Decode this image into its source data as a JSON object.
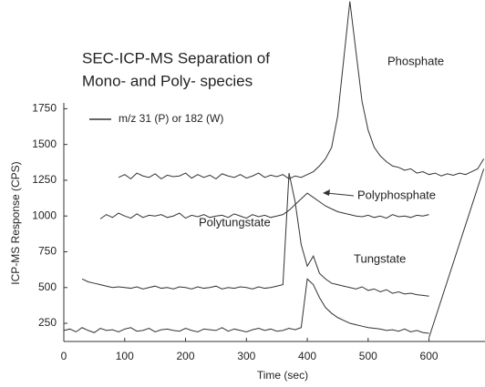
{
  "chart_data": {
    "type": "line",
    "title_lines": [
      "SEC-ICP-MS Separation of",
      "Mono- and Poly- species"
    ],
    "x_label": "Time (sec)",
    "y_label": "ICP-MS Response (CPS)",
    "legend_label": "m/z 31 (P) or 182 (W)",
    "annotations": [
      "Phosphate",
      "Polyphosphate",
      "Polytungstate",
      "Tungstate"
    ],
    "color": "#333333",
    "xlim": [
      0,
      692
    ],
    "ylim": [
      123,
      2510
    ],
    "xticks": [
      0,
      100,
      200,
      300,
      400,
      500,
      600
    ],
    "yticks": [
      250,
      500,
      750,
      1000,
      1250,
      1500,
      1750
    ],
    "series": [
      {
        "x": [
          0,
          10,
          20,
          30,
          40,
          50,
          60,
          70,
          80,
          90,
          100,
          110,
          120,
          130,
          140,
          150,
          160,
          170,
          180,
          190,
          200,
          210,
          220,
          230,
          240,
          250,
          260,
          270,
          280,
          290,
          300,
          310,
          320,
          330,
          340,
          350,
          360,
          370,
          380,
          390,
          400,
          410,
          420,
          430,
          440,
          450,
          460,
          470,
          480,
          490,
          500,
          510,
          520,
          530,
          540,
          550,
          560,
          570,
          580,
          590,
          600
        ],
        "values": [
          200,
          210,
          190,
          220,
          200,
          185,
          215,
          200,
          205,
          190,
          210,
          220,
          195,
          200,
          215,
          190,
          205,
          210,
          200,
          195,
          215,
          200,
          190,
          210,
          205,
          200,
          220,
          195,
          210,
          200,
          190,
          205,
          215,
          200,
          210,
          195,
          200,
          215,
          205,
          220,
          560,
          520,
          430,
          360,
          320,
          290,
          270,
          250,
          240,
          230,
          220,
          215,
          210,
          200,
          205,
          195,
          210,
          190,
          200,
          185,
          180
        ]
      },
      {
        "x": [
          30,
          40,
          50,
          60,
          70,
          80,
          90,
          100,
          110,
          120,
          130,
          140,
          150,
          160,
          170,
          180,
          190,
          200,
          210,
          220,
          230,
          240,
          250,
          260,
          270,
          280,
          290,
          300,
          310,
          320,
          330,
          340,
          350,
          360,
          370,
          380,
          390,
          400,
          410,
          420,
          430,
          440,
          450,
          460,
          470,
          480,
          490,
          500,
          510,
          520,
          530,
          540,
          550,
          560,
          570,
          580,
          590,
          600
        ],
        "values": [
          560,
          540,
          530,
          520,
          510,
          500,
          505,
          500,
          495,
          505,
          490,
          500,
          510,
          495,
          500,
          490,
          505,
          500,
          490,
          505,
          495,
          500,
          510,
          490,
          500,
          495,
          505,
          500,
          490,
          505,
          495,
          500,
          510,
          520,
          1300,
          1100,
          800,
          650,
          720,
          600,
          560,
          530,
          520,
          510,
          500,
          490,
          505,
          480,
          490,
          470,
          485,
          460,
          470,
          455,
          460,
          450,
          445,
          440
        ]
      },
      {
        "x": [
          60,
          70,
          80,
          90,
          100,
          110,
          120,
          130,
          140,
          150,
          160,
          170,
          180,
          190,
          200,
          210,
          220,
          230,
          240,
          250,
          260,
          270,
          280,
          290,
          300,
          310,
          320,
          330,
          340,
          350,
          360,
          370,
          380,
          390,
          400,
          410,
          420,
          430,
          440,
          450,
          460,
          470,
          480,
          490,
          500,
          510,
          520,
          530,
          540,
          550,
          560,
          570,
          580,
          590,
          600
        ],
        "values": [
          980,
          1010,
          990,
          1020,
          1000,
          985,
          1015,
          990,
          1005,
          1000,
          1010,
          990,
          1000,
          1020,
          985,
          1005,
          995,
          1010,
          990,
          1000,
          1005,
          990,
          1015,
          1000,
          985,
          1010,
          995,
          1005,
          990,
          1000,
          1010,
          1040,
          1080,
          1120,
          1160,
          1130,
          1100,
          1070,
          1050,
          1030,
          1020,
          1010,
          1000,
          995,
          1005,
          990,
          1000,
          985,
          1010,
          995,
          1000,
          990,
          1005,
          1000,
          1010
        ]
      },
      {
        "x": [
          90,
          100,
          110,
          120,
          130,
          140,
          150,
          160,
          170,
          180,
          190,
          200,
          210,
          220,
          230,
          240,
          250,
          260,
          270,
          280,
          290,
          300,
          310,
          320,
          330,
          340,
          350,
          360,
          370,
          380,
          390,
          400,
          410,
          420,
          430,
          440,
          450,
          460,
          470,
          480,
          490,
          500,
          510,
          520,
          530,
          540,
          550,
          560,
          570,
          580,
          590,
          600,
          610,
          620,
          630,
          640,
          650,
          660,
          670,
          680,
          690
        ],
        "values": [
          1270,
          1290,
          1260,
          1300,
          1280,
          1270,
          1295,
          1260,
          1285,
          1275,
          1280,
          1300,
          1265,
          1290,
          1270,
          1285,
          1260,
          1295,
          1280,
          1270,
          1290,
          1265,
          1280,
          1300,
          1270,
          1285,
          1275,
          1290,
          1260,
          1280,
          1270,
          1290,
          1310,
          1350,
          1400,
          1480,
          1700,
          2100,
          2500,
          2150,
          1800,
          1600,
          1480,
          1420,
          1380,
          1350,
          1340,
          1320,
          1330,
          1300,
          1310,
          1290,
          1300,
          1280,
          1295,
          1285,
          1300,
          1290,
          1310,
          1330,
          1400
        ]
      }
    ],
    "connector": {
      "x": [
        600,
        690
      ],
      "values": [
        150,
        1330
      ]
    }
  }
}
